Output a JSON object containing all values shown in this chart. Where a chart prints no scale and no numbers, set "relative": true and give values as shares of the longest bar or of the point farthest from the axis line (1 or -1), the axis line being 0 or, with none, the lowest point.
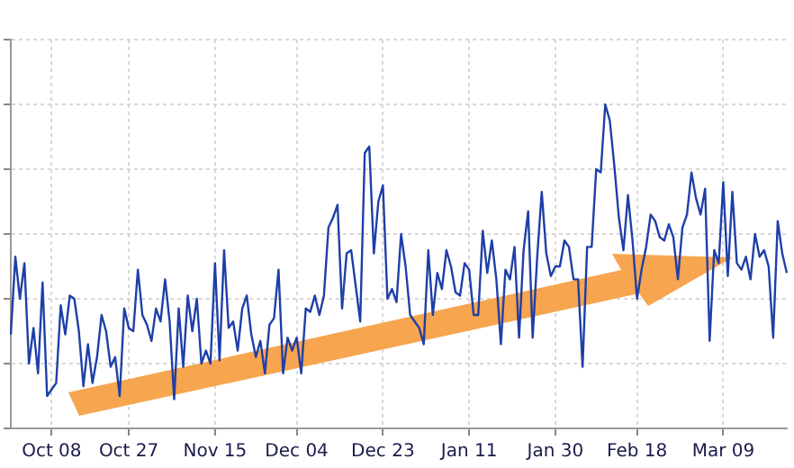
{
  "chart_data": {
    "type": "line",
    "relative": true,
    "grid": true,
    "marker": "none",
    "line_style": "solid",
    "legend": false,
    "categories": [
      null,
      null,
      null,
      null,
      null,
      null,
      null,
      null,
      null,
      "Oct 08",
      null,
      null,
      null,
      null,
      null,
      null,
      null,
      null,
      null,
      null,
      null,
      null,
      null,
      null,
      null,
      null,
      "Oct 27",
      null,
      null,
      null,
      null,
      null,
      null,
      null,
      null,
      null,
      null,
      null,
      null,
      null,
      null,
      null,
      null,
      null,
      null,
      "Nov 15",
      null,
      null,
      null,
      null,
      null,
      null,
      null,
      null,
      null,
      null,
      null,
      null,
      null,
      null,
      null,
      null,
      null,
      "Dec 04",
      null,
      null,
      null,
      null,
      null,
      null,
      null,
      null,
      null,
      null,
      null,
      null,
      null,
      null,
      null,
      null,
      null,
      null,
      "Dec 23",
      null,
      null,
      null,
      null,
      null,
      null,
      null,
      null,
      null,
      null,
      null,
      null,
      null,
      null,
      null,
      null,
      null,
      null,
      "Jan 11",
      null,
      null,
      null,
      null,
      null,
      null,
      null,
      null,
      null,
      null,
      null,
      null,
      null,
      null,
      null,
      null,
      null,
      null,
      "Jan 30",
      null,
      null,
      null,
      null,
      null,
      null,
      null,
      null,
      null,
      null,
      null,
      null,
      null,
      null,
      null,
      null,
      null,
      "Feb 18",
      null,
      null,
      null,
      null,
      null,
      null,
      null,
      null,
      null,
      null,
      null,
      null,
      null,
      null,
      null,
      null,
      null,
      null,
      "Mar 09",
      null,
      null,
      null,
      null,
      null,
      null,
      null,
      null,
      null,
      null,
      null,
      null,
      null,
      null
    ],
    "series": [
      {
        "color": "#1f3fa8",
        "values": [
          0.29,
          0.53,
          0.4,
          0.51,
          0.2,
          0.31,
          0.17,
          0.45,
          0.1,
          0.12,
          0.14,
          0.38,
          0.29,
          0.41,
          0.4,
          0.3,
          0.13,
          0.26,
          0.14,
          0.22,
          0.35,
          0.3,
          0.19,
          0.22,
          0.1,
          0.37,
          0.31,
          0.3,
          0.49,
          0.35,
          0.32,
          0.27,
          0.37,
          0.33,
          0.46,
          0.33,
          0.09,
          0.37,
          0.19,
          0.41,
          0.3,
          0.4,
          0.2,
          0.24,
          0.2,
          0.51,
          0.21,
          0.55,
          0.31,
          0.33,
          0.24,
          0.37,
          0.41,
          0.29,
          0.22,
          0.27,
          0.17,
          0.32,
          0.34,
          0.49,
          0.17,
          0.28,
          0.24,
          0.28,
          0.17,
          0.37,
          0.36,
          0.41,
          0.35,
          0.41,
          0.62,
          0.65,
          0.69,
          0.37,
          0.54,
          0.55,
          0.44,
          0.33,
          0.85,
          0.87,
          0.54,
          0.7,
          0.75,
          0.4,
          0.43,
          0.39,
          0.6,
          0.5,
          0.35,
          0.33,
          0.31,
          0.26,
          0.55,
          0.35,
          0.48,
          0.43,
          0.55,
          0.5,
          0.42,
          0.41,
          0.51,
          0.49,
          0.35,
          0.35,
          0.61,
          0.48,
          0.58,
          0.46,
          0.26,
          0.49,
          0.46,
          0.56,
          0.28,
          0.55,
          0.67,
          0.28,
          0.53,
          0.73,
          0.54,
          0.47,
          0.5,
          0.5,
          0.58,
          0.56,
          0.46,
          0.46,
          0.19,
          0.56,
          0.56,
          0.8,
          0.79,
          1.0,
          0.95,
          0.81,
          0.65,
          0.55,
          0.72,
          0.58,
          0.4,
          0.49,
          0.56,
          0.66,
          0.64,
          0.59,
          0.58,
          0.63,
          0.59,
          0.46,
          0.62,
          0.66,
          0.79,
          0.71,
          0.66,
          0.74,
          0.27,
          0.55,
          0.51,
          0.76,
          0.47,
          0.73,
          0.51,
          0.49,
          0.53,
          0.46,
          0.6,
          0.53,
          0.55,
          0.5,
          0.28,
          0.64,
          0.54,
          0.48
        ]
      }
    ]
  }
}
